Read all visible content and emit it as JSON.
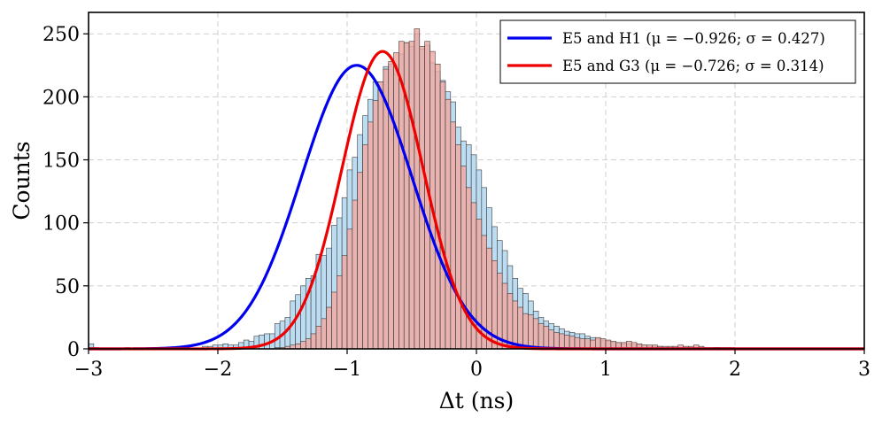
{
  "chart_data": {
    "type": "histogram",
    "xlabel": "Δt (ns)",
    "ylabel": "Counts",
    "xlim": [
      -3,
      3
    ],
    "ylim": [
      0,
      267
    ],
    "x_ticks": [
      -3,
      -2,
      -1,
      0,
      1,
      2,
      3
    ],
    "x_tick_labels": [
      "−3",
      "−2",
      "−1",
      "0",
      "1",
      "2",
      "3"
    ],
    "y_ticks": [
      0,
      50,
      100,
      150,
      200,
      250
    ],
    "y_tick_labels": [
      "0",
      "50",
      "100",
      "150",
      "200",
      "250"
    ],
    "grid": true,
    "legend_position": "top-right",
    "bin_start": -3.0,
    "bin_width": 0.04,
    "series": [
      {
        "name": "E5 and H1",
        "legend_label": "E5 and H1 (μ = −0.926; σ = 0.427)",
        "mu": -0.926,
        "sigma": 0.427,
        "amplitude": 225,
        "line_color": "#0000ee",
        "bar_color": "#bcdcf2",
        "counts": [
          4,
          1,
          0,
          0,
          0,
          0,
          0,
          1,
          0,
          0,
          0,
          0,
          1,
          0,
          0,
          0,
          0,
          0,
          0,
          0,
          0,
          0,
          2,
          2,
          3,
          3,
          4,
          3,
          3,
          5,
          7,
          6,
          10,
          11,
          12,
          12,
          20,
          22,
          25,
          38,
          43,
          50,
          56,
          58,
          75,
          74,
          80,
          98,
          104,
          120,
          142,
          152,
          170,
          185,
          198,
          212,
          212,
          224,
          226,
          225,
          234,
          243,
          240,
          250,
          238,
          241,
          227,
          220,
          213,
          204,
          196,
          176,
          165,
          162,
          154,
          142,
          128,
          112,
          97,
          86,
          78,
          66,
          56,
          48,
          44,
          38,
          30,
          25,
          22,
          20,
          18,
          16,
          14,
          13,
          12,
          12,
          10,
          9,
          8,
          7,
          6,
          5,
          5,
          4,
          4,
          3,
          3,
          3,
          2,
          2,
          2,
          1,
          1,
          1,
          1,
          1,
          1,
          1,
          0,
          0,
          0,
          1,
          0,
          0,
          0,
          0,
          0,
          0,
          0,
          0,
          0,
          0,
          0,
          0,
          0,
          0,
          0,
          0,
          0,
          0,
          0,
          0,
          0,
          0,
          0,
          0,
          0,
          0,
          0,
          0,
          0,
          0,
          0,
          0,
          0,
          0
        ]
      },
      {
        "name": "E5 and G3",
        "legend_label": "E5 and G3 (μ = −0.726; σ = 0.314)",
        "mu": -0.726,
        "sigma": 0.314,
        "amplitude": 236,
        "line_color": "#ee0000",
        "bar_color": "#f0a8a0",
        "counts": [
          1,
          0,
          0,
          0,
          0,
          0,
          0,
          0,
          0,
          0,
          0,
          0,
          0,
          0,
          0,
          0,
          0,
          0,
          0,
          0,
          0,
          0,
          0,
          0,
          0,
          0,
          0,
          0,
          0,
          0,
          0,
          0,
          0,
          0,
          0,
          0,
          1,
          1,
          2,
          3,
          4,
          6,
          8,
          12,
          18,
          24,
          33,
          45,
          58,
          74,
          95,
          118,
          140,
          162,
          180,
          197,
          212,
          222,
          228,
          235,
          244,
          243,
          244,
          254,
          240,
          244,
          236,
          226,
          212,
          198,
          180,
          162,
          145,
          128,
          116,
          103,
          90,
          80,
          70,
          60,
          52,
          44,
          38,
          33,
          28,
          27,
          24,
          20,
          18,
          15,
          13,
          12,
          11,
          10,
          9,
          8,
          8,
          7,
          9,
          8,
          7,
          6,
          5,
          5,
          6,
          5,
          4,
          3,
          3,
          3,
          2,
          2,
          2,
          2,
          3,
          2,
          2,
          3,
          2,
          1,
          1,
          1,
          1,
          1,
          1,
          0,
          0,
          0,
          0,
          0,
          0,
          0,
          0,
          0,
          0,
          0,
          0,
          0,
          0,
          0,
          0,
          0,
          0,
          0,
          0,
          0,
          0,
          0,
          0,
          0,
          0
        ]
      }
    ]
  }
}
